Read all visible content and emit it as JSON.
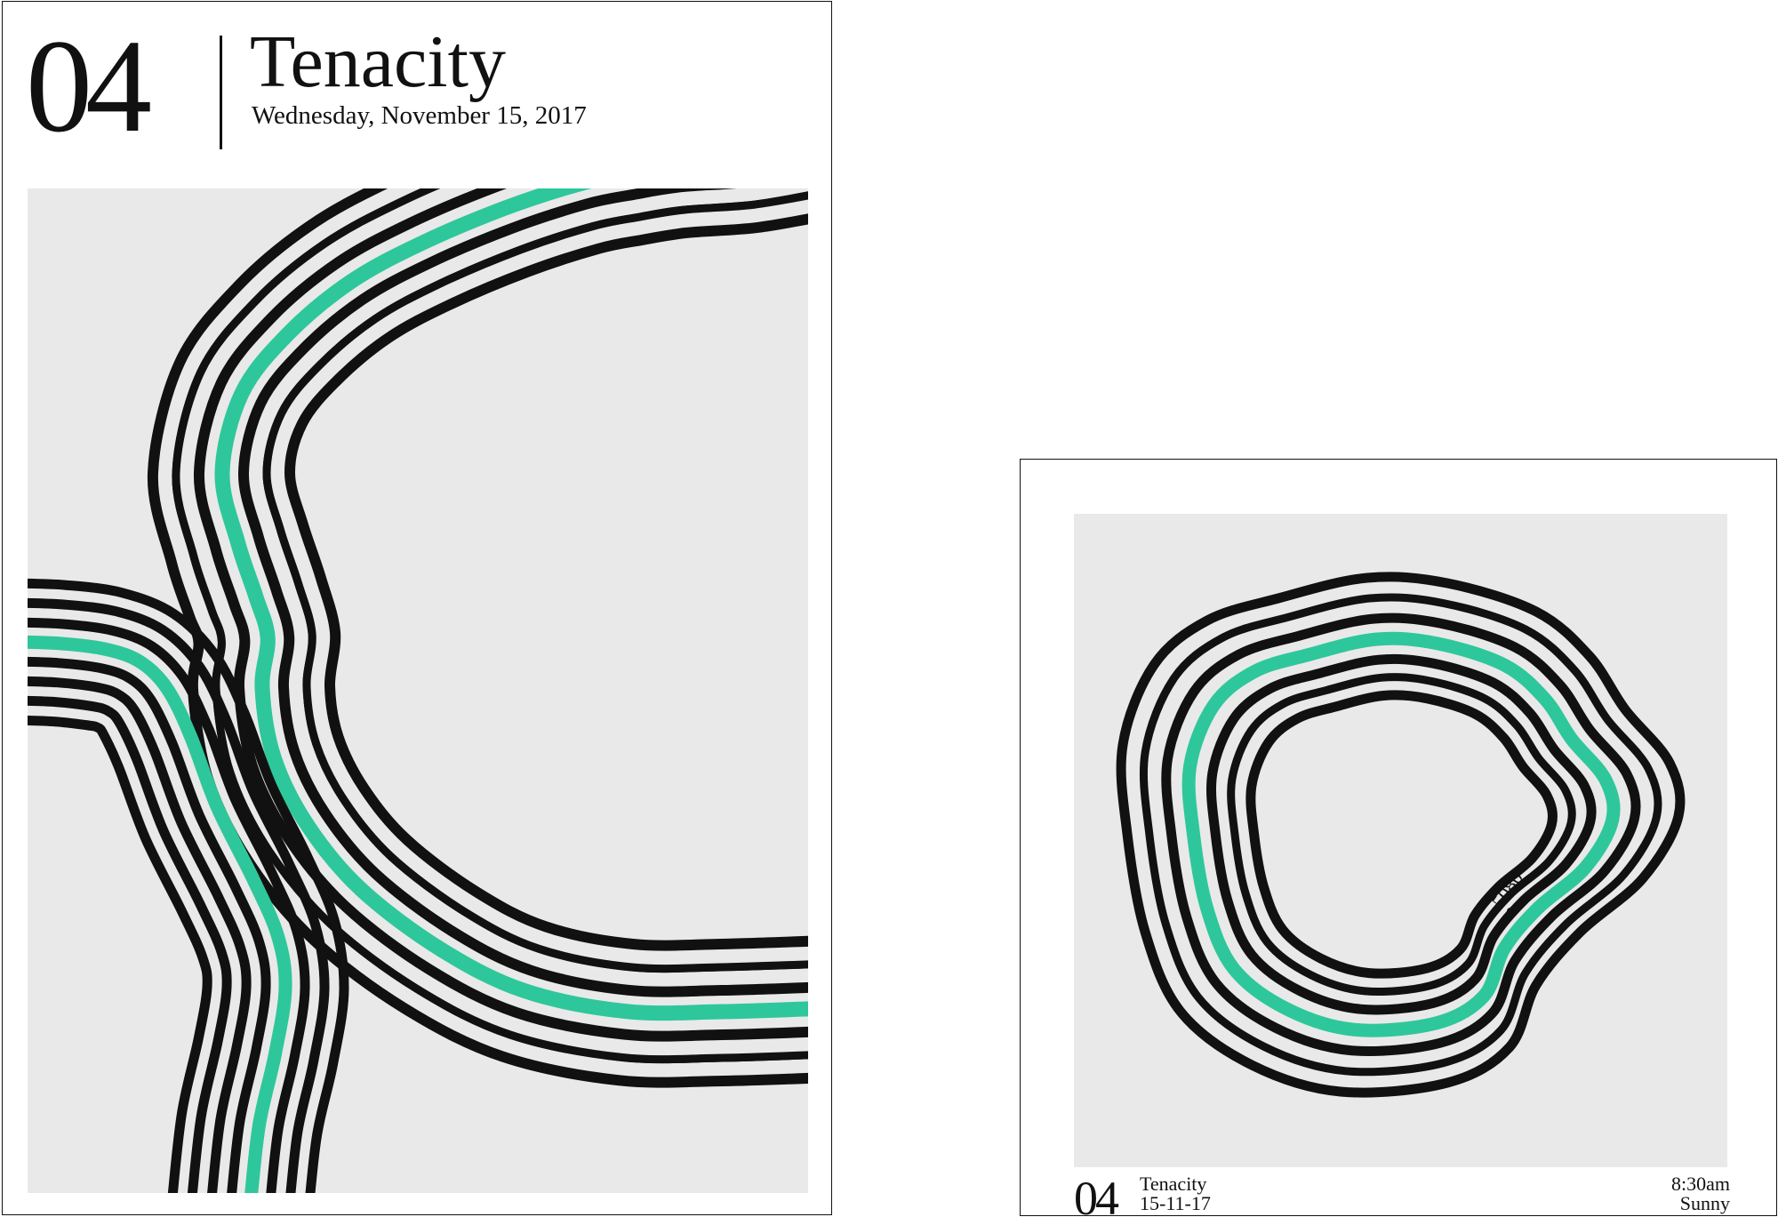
{
  "poster_large": {
    "number": "04",
    "title": "Tenacity",
    "date": "Wednesday, November 15, 2017"
  },
  "poster_small": {
    "number": "04",
    "title": "Tenacity",
    "date": "15-11-17",
    "time": "8:30am",
    "weather": "Sunny",
    "marker_label": "5080"
  },
  "colors": {
    "background": "#ffffff",
    "panel": "#e9e9e9",
    "stroke": "#111111",
    "accent": "#2ec79b"
  }
}
